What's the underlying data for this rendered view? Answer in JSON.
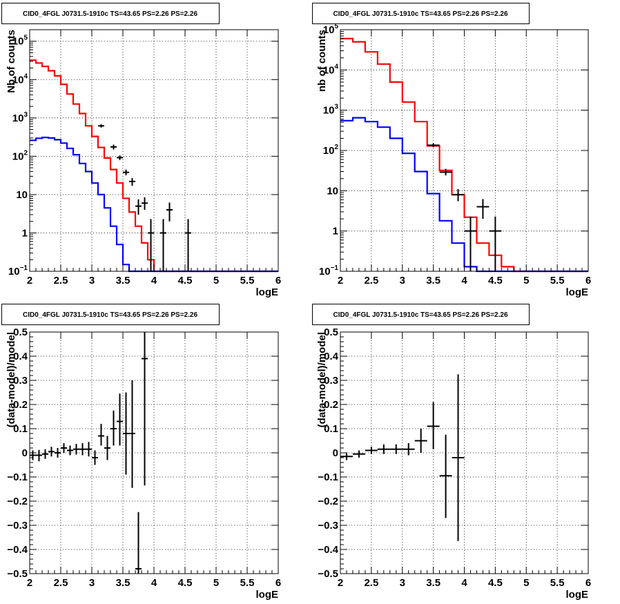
{
  "chart_data": [
    {
      "id": "p1",
      "type": "line",
      "title": "CID0_4FGL J0731.5-1910c TS=43.65 PS=2.26 PS=2.26",
      "xlabel": "logE",
      "ylabel": "Nb of counts",
      "xlim": [
        2,
        6
      ],
      "ylim": [
        0.1,
        200000
      ],
      "yscale": "log",
      "grid": true,
      "x_ticks": [
        2,
        2.5,
        3,
        3.5,
        4,
        4.5,
        5,
        5.5,
        6
      ],
      "x_tick_labels": [
        "2",
        "2.5",
        "3",
        "3.5",
        "4",
        "4.5",
        "5",
        "5.5",
        "6"
      ],
      "y_ticks": [
        0.1,
        1,
        10,
        100,
        1000,
        10000,
        100000
      ],
      "y_tick_labels": [
        "10^-1",
        "1",
        "10",
        "10^2",
        "10^3",
        "10^4",
        "10^5"
      ],
      "series": [
        {
          "color": "#ff0000",
          "style": "step",
          "bin_width": 0.1,
          "edges_start": 2.0,
          "values": [
            32000,
            27000,
            22000,
            17000,
            12500,
            7500,
            4200,
            2300,
            1300,
            620,
            330,
            170,
            90,
            45,
            20,
            8,
            3.5,
            1.5,
            0.55,
            0.2,
            0.1,
            0.1,
            0.1,
            0.1,
            0.1,
            0.1,
            0.1,
            0.1,
            0.1,
            0.1,
            0.1,
            0.1,
            0.1,
            0.1,
            0.1,
            0.1,
            0.1,
            0.1,
            0.1,
            0.1
          ]
        },
        {
          "color": "#0000ff",
          "style": "step",
          "bin_width": 0.1,
          "edges_start": 2.0,
          "values": [
            260,
            295,
            310,
            300,
            270,
            220,
            160,
            110,
            65,
            40,
            20,
            10,
            4.5,
            1.5,
            0.5,
            0.15,
            0.1,
            0.1,
            0.1,
            0.1,
            0.1,
            0.1,
            0.1,
            0.1,
            0.1,
            0.1,
            0.1,
            0.1,
            0.1,
            0.1,
            0.1,
            0.1,
            0.1,
            0.1,
            0.1,
            0.1,
            0.1,
            0.1,
            0.1,
            0.1
          ]
        },
        {
          "color": "#000000",
          "style": "errorbar",
          "xerr": 0.05,
          "points": [
            {
              "x": 3.15,
              "y": 620,
              "lo": 560,
              "hi": 680
            },
            {
              "x": 3.35,
              "y": 175,
              "lo": 150,
              "hi": 200
            },
            {
              "x": 3.45,
              "y": 92,
              "lo": 80,
              "hi": 105
            },
            {
              "x": 3.55,
              "y": 38,
              "lo": 32,
              "hi": 45
            },
            {
              "x": 3.65,
              "y": 22,
              "lo": 17,
              "hi": 27
            },
            {
              "x": 3.75,
              "y": 5,
              "lo": 3,
              "hi": 7.5
            },
            {
              "x": 3.85,
              "y": 6,
              "lo": 4,
              "hi": 8.5
            },
            {
              "x": 3.95,
              "y": 1,
              "lo": 0.1,
              "hi": 2.3
            },
            {
              "x": 4.15,
              "y": 1,
              "lo": 0.1,
              "hi": 2.3
            },
            {
              "x": 4.25,
              "y": 4,
              "lo": 2,
              "hi": 6.2
            },
            {
              "x": 4.55,
              "y": 1,
              "lo": 0.1,
              "hi": 2.3
            }
          ]
        }
      ]
    },
    {
      "id": "p2",
      "type": "line",
      "title": "CID0_4FGL J0731.5-1910c TS=43.65 PS=2.26 PS=2.26",
      "xlabel": "logE",
      "ylabel": "nb of counts",
      "xlim": [
        2,
        6
      ],
      "ylim": [
        0.1,
        100000
      ],
      "yscale": "log",
      "grid": true,
      "x_ticks": [
        2,
        2.5,
        3,
        3.5,
        4,
        4.5,
        5,
        5.5,
        6
      ],
      "x_tick_labels": [
        "2",
        "2.5",
        "3",
        "3.5",
        "4",
        "4.5",
        "5",
        "5.5",
        "6"
      ],
      "y_ticks": [
        0.1,
        1,
        10,
        100,
        1000,
        10000,
        100000
      ],
      "y_tick_labels": [
        "10^-1",
        "1",
        "10",
        "10^2",
        "10^3",
        "10^4",
        "10^5"
      ],
      "series": [
        {
          "color": "#ff0000",
          "style": "step",
          "bin_width": 0.2,
          "edges_start": 2.0,
          "values": [
            60000,
            50000,
            28000,
            14000,
            5000,
            1600,
            520,
            130,
            32,
            8,
            2.2,
            0.5,
            0.25,
            0.13,
            0.1,
            0.1,
            0.1,
            0.1,
            0.1,
            0.1
          ]
        },
        {
          "color": "#0000ff",
          "style": "step",
          "bin_width": 0.2,
          "edges_start": 2.0,
          "values": [
            550,
            650,
            520,
            380,
            200,
            85,
            30,
            8.5,
            1.8,
            0.5,
            0.13,
            0.1,
            0.1,
            0.1,
            0.1,
            0.1,
            0.1,
            0.1,
            0.1,
            0.1
          ]
        },
        {
          "color": "#000000",
          "style": "errorbar",
          "xerr": 0.1,
          "points": [
            {
              "x": 3.5,
              "y": 135,
              "lo": 120,
              "hi": 150
            },
            {
              "x": 3.7,
              "y": 29,
              "lo": 24,
              "hi": 35
            },
            {
              "x": 3.9,
              "y": 8,
              "lo": 5.5,
              "hi": 11
            },
            {
              "x": 4.1,
              "y": 1,
              "lo": 0.1,
              "hi": 2.3
            },
            {
              "x": 4.3,
              "y": 4,
              "lo": 2,
              "hi": 6.2
            },
            {
              "x": 4.5,
              "y": 1,
              "lo": 0.1,
              "hi": 2.3
            }
          ]
        }
      ]
    },
    {
      "id": "p3",
      "type": "scatter",
      "title": "CID0_4FGL J0731.5-1910c TS=43.65 PS=2.26 PS=2.26",
      "xlabel": "logE",
      "ylabel": "(data-model)/model",
      "xlim": [
        2,
        6
      ],
      "ylim": [
        -0.5,
        0.5
      ],
      "yscale": "linear",
      "grid": true,
      "x_ticks": [
        2,
        2.5,
        3,
        3.5,
        4,
        4.5,
        5,
        5.5,
        6
      ],
      "x_tick_labels": [
        "2",
        "2.5",
        "3",
        "3.5",
        "4",
        "4.5",
        "5",
        "5.5",
        "6"
      ],
      "y_ticks": [
        -0.5,
        -0.4,
        -0.3,
        -0.2,
        -0.1,
        0,
        0.1,
        0.2,
        0.3,
        0.4,
        0.5
      ],
      "y_tick_labels": [
        "−0.5",
        "−0.4",
        "−0.3",
        "−0.2",
        "−0.1",
        "0",
        "0.1",
        "0.2",
        "0.3",
        "0.4",
        "0.5"
      ],
      "series": [
        {
          "color": "#000000",
          "style": "errorbar",
          "xerr": 0.05,
          "points": [
            {
              "x": 2.05,
              "y": -0.01,
              "lo": -0.03,
              "hi": 0.01
            },
            {
              "x": 2.15,
              "y": -0.01,
              "lo": -0.035,
              "hi": 0.012
            },
            {
              "x": 2.25,
              "y": -0.005,
              "lo": -0.025,
              "hi": 0.015
            },
            {
              "x": 2.35,
              "y": 0.005,
              "lo": -0.015,
              "hi": 0.025
            },
            {
              "x": 2.45,
              "y": 0.0,
              "lo": -0.02,
              "hi": 0.02
            },
            {
              "x": 2.55,
              "y": 0.02,
              "lo": 0.0,
              "hi": 0.04
            },
            {
              "x": 2.65,
              "y": 0.01,
              "lo": -0.01,
              "hi": 0.03
            },
            {
              "x": 2.75,
              "y": 0.015,
              "lo": -0.007,
              "hi": 0.037
            },
            {
              "x": 2.85,
              "y": 0.015,
              "lo": -0.01,
              "hi": 0.04
            },
            {
              "x": 2.95,
              "y": 0.015,
              "lo": -0.015,
              "hi": 0.045
            },
            {
              "x": 3.05,
              "y": -0.02,
              "lo": -0.05,
              "hi": 0.01
            },
            {
              "x": 3.15,
              "y": 0.07,
              "lo": 0.03,
              "hi": 0.12
            },
            {
              "x": 3.25,
              "y": 0.02,
              "lo": -0.03,
              "hi": 0.07
            },
            {
              "x": 3.35,
              "y": 0.1,
              "lo": 0.03,
              "hi": 0.175
            },
            {
              "x": 3.45,
              "y": 0.13,
              "lo": 0.03,
              "hi": 0.245
            },
            {
              "x": 3.55,
              "y": 0.08,
              "lo": -0.09,
              "hi": 0.25
            },
            {
              "x": 3.65,
              "y": 0.08,
              "lo": -0.145,
              "hi": 0.3
            },
            {
              "x": 3.75,
              "y": -0.48,
              "lo": -0.5,
              "hi": -0.245
            },
            {
              "x": 3.85,
              "y": 0.39,
              "lo": -0.135,
              "hi": 0.5
            }
          ]
        }
      ]
    },
    {
      "id": "p4",
      "type": "scatter",
      "title": "CID0_4FGL J0731.5-1910c TS=43.65 PS=2.26 PS=2.26",
      "xlabel": "logE",
      "ylabel": "(data-model)/model",
      "xlim": [
        2,
        6
      ],
      "ylim": [
        -0.5,
        0.5
      ],
      "yscale": "linear",
      "grid": true,
      "x_ticks": [
        2,
        2.5,
        3,
        3.5,
        4,
        4.5,
        5,
        5.5,
        6
      ],
      "x_tick_labels": [
        "2",
        "2.5",
        "3",
        "3.5",
        "4",
        "4.5",
        "5",
        "5.5",
        "6"
      ],
      "y_ticks": [
        -0.5,
        -0.4,
        -0.3,
        -0.2,
        -0.1,
        0,
        0.1,
        0.2,
        0.3,
        0.4,
        0.5
      ],
      "y_tick_labels": [
        "−0.5",
        "−0.4",
        "−0.3",
        "−0.2",
        "−0.1",
        "0",
        "0.1",
        "0.2",
        "0.3",
        "0.4",
        "0.5"
      ],
      "series": [
        {
          "color": "#000000",
          "style": "errorbar",
          "xerr": 0.1,
          "points": [
            {
              "x": 2.1,
              "y": -0.015,
              "lo": -0.03,
              "hi": 0.0
            },
            {
              "x": 2.3,
              "y": -0.005,
              "lo": -0.02,
              "hi": 0.01
            },
            {
              "x": 2.5,
              "y": 0.01,
              "lo": -0.005,
              "hi": 0.025
            },
            {
              "x": 2.7,
              "y": 0.015,
              "lo": -0.005,
              "hi": 0.035
            },
            {
              "x": 2.9,
              "y": 0.015,
              "lo": -0.005,
              "hi": 0.035
            },
            {
              "x": 3.1,
              "y": 0.015,
              "lo": -0.01,
              "hi": 0.04
            },
            {
              "x": 3.3,
              "y": 0.05,
              "lo": 0.0,
              "hi": 0.1
            },
            {
              "x": 3.5,
              "y": 0.11,
              "lo": 0.015,
              "hi": 0.21
            },
            {
              "x": 3.7,
              "y": -0.095,
              "lo": -0.27,
              "hi": 0.075
            },
            {
              "x": 3.9,
              "y": -0.02,
              "lo": -0.365,
              "hi": 0.325
            }
          ]
        }
      ]
    }
  ]
}
